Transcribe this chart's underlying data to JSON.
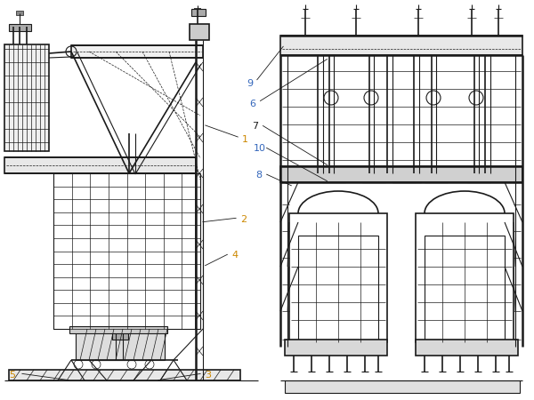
{
  "bg_color": "#ffffff",
  "line_color": "#1a1a1a",
  "label_color_orange": "#cc8800",
  "label_color_blue": "#3366bb",
  "figsize": [
    6.0,
    4.5
  ],
  "dpi": 100
}
